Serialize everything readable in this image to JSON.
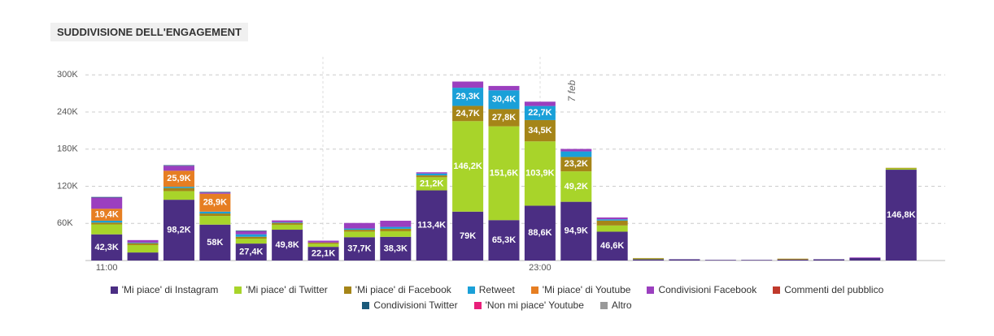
{
  "chart_data": {
    "type": "stacked_bar",
    "title": "SUDDIVISIONE DELL'ENGAGEMENT",
    "annotation": "7 feb",
    "categories": [
      "11:00",
      null,
      null,
      null,
      null,
      null,
      null,
      null,
      null,
      null,
      null,
      null,
      "23:00",
      null,
      null,
      null,
      null,
      null,
      null,
      null,
      null,
      null,
      null
    ],
    "ylim": [
      0,
      320000
    ],
    "yticks": [
      {
        "value": 60000,
        "label": "60K"
      },
      {
        "value": 120000,
        "label": "120K"
      },
      {
        "value": 180000,
        "label": "180K"
      },
      {
        "value": 240000,
        "label": "240K"
      },
      {
        "value": 300000,
        "label": "300K"
      }
    ],
    "grid": true,
    "series": [
      {
        "name": "'Mi piace' di Instagram",
        "color": "#4b2e83",
        "values": [
          42300,
          13000,
          98200,
          58000,
          27400,
          49800,
          22100,
          37700,
          38300,
          113400,
          79000,
          65300,
          88600,
          94900,
          46600,
          2000,
          2000,
          1000,
          1000,
          1500,
          2000,
          4000,
          146800
        ],
        "value_labels": [
          "42,3K",
          null,
          "98,2K",
          "58K",
          "27,4K",
          "49,8K",
          "22,1K",
          "37,7K",
          "38,3K",
          "113,4K",
          "79K",
          "65,3K",
          "88,6K",
          "94,9K",
          "46,6K",
          null,
          null,
          null,
          null,
          null,
          null,
          null,
          "146,8K"
        ]
      },
      {
        "name": "'Mi piace' di Twitter",
        "color": "#a8d42a",
        "values": [
          16000,
          12000,
          14000,
          14000,
          8000,
          8000,
          5000,
          9000,
          9000,
          21200,
          146200,
          151600,
          103900,
          49200,
          10000,
          1000,
          0,
          0,
          0,
          0,
          0,
          0,
          2000
        ],
        "value_labels": [
          null,
          null,
          null,
          null,
          null,
          null,
          null,
          null,
          null,
          "21,2K",
          "146,2K",
          "151,6K",
          "103,9K",
          "49,2K",
          null,
          null,
          null,
          null,
          null,
          null,
          null,
          null,
          null
        ]
      },
      {
        "name": "'Mi piace' di Facebook",
        "color": "#a58518",
        "values": [
          3000,
          3000,
          5000,
          4000,
          3000,
          3000,
          2000,
          3000,
          4000,
          3000,
          24700,
          27800,
          34500,
          23200,
          8000,
          1000,
          0,
          0,
          0,
          1500,
          0,
          0,
          1000
        ],
        "value_labels": [
          null,
          null,
          null,
          null,
          null,
          null,
          null,
          null,
          null,
          null,
          "24,7K",
          "27,8K",
          "34,5K",
          "23,2K",
          null,
          null,
          null,
          null,
          null,
          null,
          null,
          null,
          null
        ]
      },
      {
        "name": "Retweet",
        "color": "#1aa0d8",
        "values": [
          3000,
          1000,
          2000,
          3000,
          4000,
          1000,
          0,
          2000,
          3000,
          3000,
          29300,
          30400,
          22700,
          9000,
          2000,
          0,
          0,
          0,
          0,
          0,
          0,
          0,
          0
        ],
        "value_labels": [
          null,
          null,
          null,
          null,
          null,
          null,
          null,
          null,
          null,
          null,
          "29,3K",
          "30,4K",
          "22,7K",
          null,
          null,
          null,
          null,
          null,
          null,
          null,
          null,
          null,
          null
        ]
      },
      {
        "name": "'Mi piace' di Youtube",
        "color": "#e67e22",
        "values": [
          19400,
          0,
          25900,
          28900,
          0,
          0,
          0,
          0,
          0,
          0,
          0,
          0,
          0,
          0,
          0,
          0,
          0,
          0,
          0,
          0,
          0,
          0,
          0
        ],
        "value_labels": [
          "19,4K",
          null,
          "25,9K",
          "28,9K",
          null,
          null,
          null,
          null,
          null,
          null,
          null,
          null,
          null,
          null,
          null,
          null,
          null,
          null,
          null,
          null,
          null,
          null,
          null
        ]
      },
      {
        "name": "Condivisioni Facebook",
        "color": "#9b3fbf",
        "values": [
          18000,
          4000,
          8000,
          2000,
          5000,
          3000,
          3000,
          9000,
          10000,
          2000,
          10000,
          7000,
          7000,
          4000,
          3000,
          0,
          0,
          0,
          0,
          0,
          0,
          1000,
          0
        ]
      },
      {
        "name": "Commenti del pubblico",
        "color": "#c0392b",
        "values": [
          0,
          0,
          0,
          0,
          0,
          0,
          0,
          0,
          0,
          0,
          0,
          0,
          0,
          0,
          0,
          0,
          0,
          0,
          0,
          0,
          0,
          0,
          0
        ]
      },
      {
        "name": "Condivisioni Twitter",
        "color": "#1a5a7a",
        "values": [
          1000,
          0,
          1000,
          1000,
          1000,
          0,
          0,
          0,
          0,
          0,
          0,
          0,
          0,
          0,
          0,
          0,
          0,
          0,
          0,
          0,
          0,
          0,
          0
        ]
      },
      {
        "name": "'Non mi piace' Youtube",
        "color": "#e91e7a",
        "values": [
          0,
          0,
          0,
          0,
          0,
          0,
          0,
          0,
          0,
          0,
          0,
          0,
          0,
          0,
          0,
          0,
          0,
          0,
          0,
          0,
          0,
          0,
          0
        ]
      },
      {
        "name": "Altro",
        "color": "#999999",
        "values": [
          0,
          0,
          0,
          0,
          0,
          0,
          0,
          0,
          0,
          0,
          0,
          0,
          0,
          0,
          0,
          0,
          0,
          0,
          0,
          0,
          0,
          0,
          0
        ]
      }
    ]
  }
}
